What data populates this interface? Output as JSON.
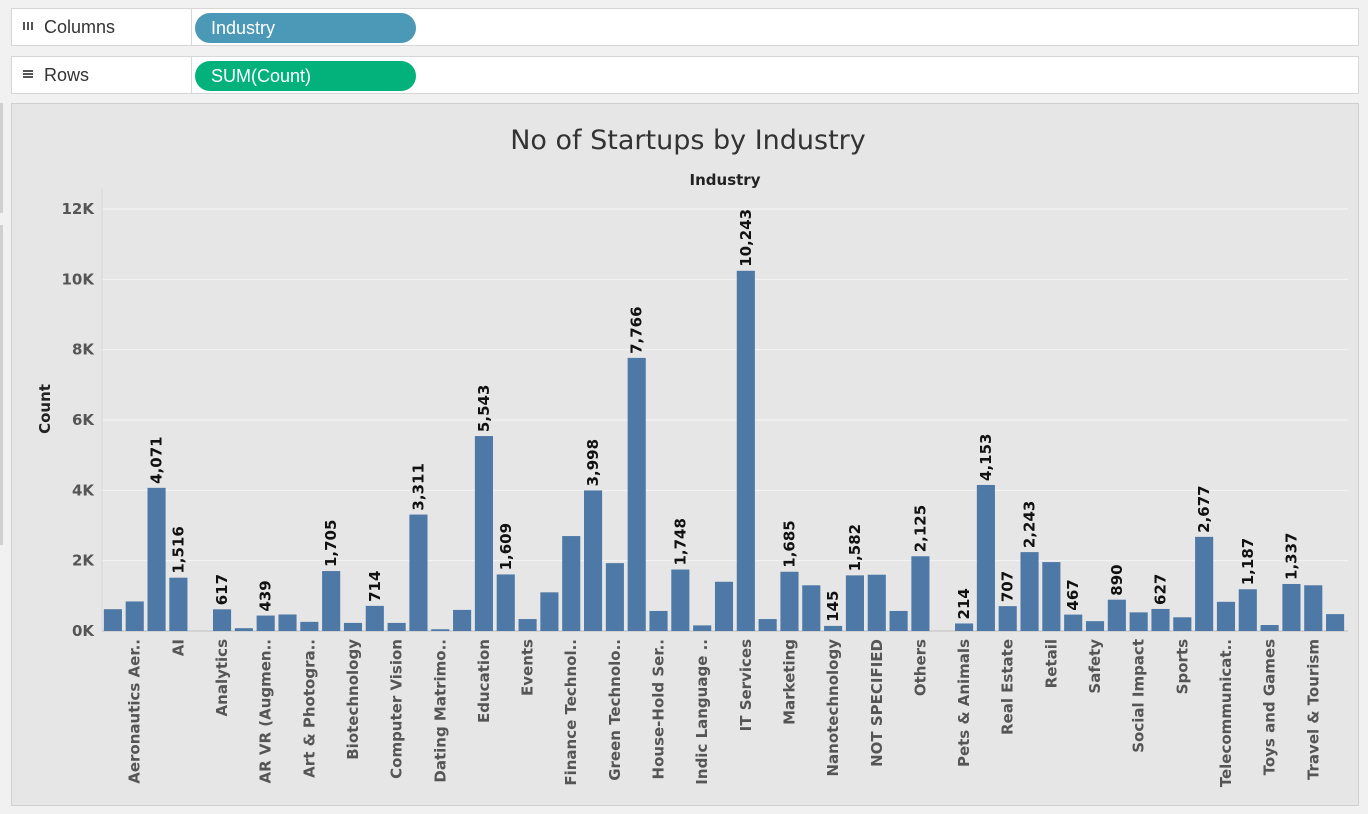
{
  "shelves": {
    "columns": {
      "label": "Columns",
      "icon": "columns-icon",
      "pill": "Industry",
      "pill_color": "#4b98b7"
    },
    "rows": {
      "label": "Rows",
      "icon": "rows-icon",
      "pill": "SUM(Count)",
      "pill_color": "#02b27a"
    }
  },
  "chart_data": {
    "type": "bar",
    "title": "No of Startups by Industry",
    "xlabel": "Industry",
    "ylabel": "Count",
    "ylim": [
      0,
      12500
    ],
    "yticks": [
      0,
      2000,
      4000,
      6000,
      8000,
      10000,
      12000
    ],
    "ytick_labels": [
      "0K",
      "2K",
      "4K",
      "6K",
      "8K",
      "10K",
      "12K"
    ],
    "grid": true,
    "bar_color": "#4e79a7",
    "bars": [
      {
        "category": "",
        "value": 620,
        "label": ""
      },
      {
        "category": "Aeronautics Aer..",
        "value": 840,
        "label": ""
      },
      {
        "category": "",
        "value": 4071,
        "label": "4,071"
      },
      {
        "category": "AI",
        "value": 1516,
        "label": "1,516"
      },
      {
        "category": "",
        "value": 0,
        "label": ""
      },
      {
        "category": "Analytics",
        "value": 617,
        "label": "617"
      },
      {
        "category": "",
        "value": 80,
        "label": ""
      },
      {
        "category": "AR VR (Augmen..",
        "value": 439,
        "label": "439"
      },
      {
        "category": "",
        "value": 470,
        "label": ""
      },
      {
        "category": "Art & Photogra..",
        "value": 260,
        "label": ""
      },
      {
        "category": "",
        "value": 1705,
        "label": "1,705"
      },
      {
        "category": "Biotechnology",
        "value": 230,
        "label": ""
      },
      {
        "category": "",
        "value": 714,
        "label": "714"
      },
      {
        "category": "Computer Vision",
        "value": 230,
        "label": ""
      },
      {
        "category": "",
        "value": 3311,
        "label": "3,311"
      },
      {
        "category": "Dating Matrimo..",
        "value": 50,
        "label": ""
      },
      {
        "category": "",
        "value": 600,
        "label": ""
      },
      {
        "category": "Education",
        "value": 5543,
        "label": "5,543"
      },
      {
        "category": "",
        "value": 1609,
        "label": "1,609"
      },
      {
        "category": "Events",
        "value": 340,
        "label": ""
      },
      {
        "category": "",
        "value": 1100,
        "label": ""
      },
      {
        "category": "Finance Technol..",
        "value": 2700,
        "label": ""
      },
      {
        "category": "",
        "value": 3998,
        "label": "3,998"
      },
      {
        "category": "Green Technolo..",
        "value": 1930,
        "label": ""
      },
      {
        "category": "",
        "value": 7766,
        "label": "7,766"
      },
      {
        "category": "House-Hold Ser..",
        "value": 570,
        "label": ""
      },
      {
        "category": "",
        "value": 1748,
        "label": "1,748"
      },
      {
        "category": "Indic Language ..",
        "value": 160,
        "label": ""
      },
      {
        "category": "",
        "value": 1400,
        "label": ""
      },
      {
        "category": "IT Services",
        "value": 10243,
        "label": "10,243"
      },
      {
        "category": "",
        "value": 340,
        "label": ""
      },
      {
        "category": "Marketing",
        "value": 1685,
        "label": "1,685"
      },
      {
        "category": "",
        "value": 1300,
        "label": ""
      },
      {
        "category": "Nanotechnology",
        "value": 145,
        "label": "145"
      },
      {
        "category": "",
        "value": 1582,
        "label": "1,582"
      },
      {
        "category": "NOT SPECIFIED",
        "value": 1600,
        "label": ""
      },
      {
        "category": "",
        "value": 570,
        "label": ""
      },
      {
        "category": "Others",
        "value": 2125,
        "label": "2,125"
      },
      {
        "category": "",
        "value": 0,
        "label": ""
      },
      {
        "category": "Pets & Animals",
        "value": 214,
        "label": "214"
      },
      {
        "category": "",
        "value": 4153,
        "label": "4,153"
      },
      {
        "category": "Real Estate",
        "value": 707,
        "label": "707"
      },
      {
        "category": "",
        "value": 2243,
        "label": "2,243"
      },
      {
        "category": "Retail",
        "value": 1960,
        "label": ""
      },
      {
        "category": "",
        "value": 467,
        "label": "467"
      },
      {
        "category": "Safety",
        "value": 280,
        "label": ""
      },
      {
        "category": "",
        "value": 890,
        "label": "890"
      },
      {
        "category": "Social Impact",
        "value": 530,
        "label": ""
      },
      {
        "category": "",
        "value": 627,
        "label": "627"
      },
      {
        "category": "Sports",
        "value": 390,
        "label": ""
      },
      {
        "category": "",
        "value": 2677,
        "label": "2,677"
      },
      {
        "category": "Telecommunicat..",
        "value": 830,
        "label": ""
      },
      {
        "category": "",
        "value": 1187,
        "label": "1,187"
      },
      {
        "category": "Toys and Games",
        "value": 170,
        "label": ""
      },
      {
        "category": "",
        "value": 1337,
        "label": "1,337"
      },
      {
        "category": "Travel & Tourism",
        "value": 1300,
        "label": ""
      },
      {
        "category": "",
        "value": 480,
        "label": ""
      }
    ]
  }
}
